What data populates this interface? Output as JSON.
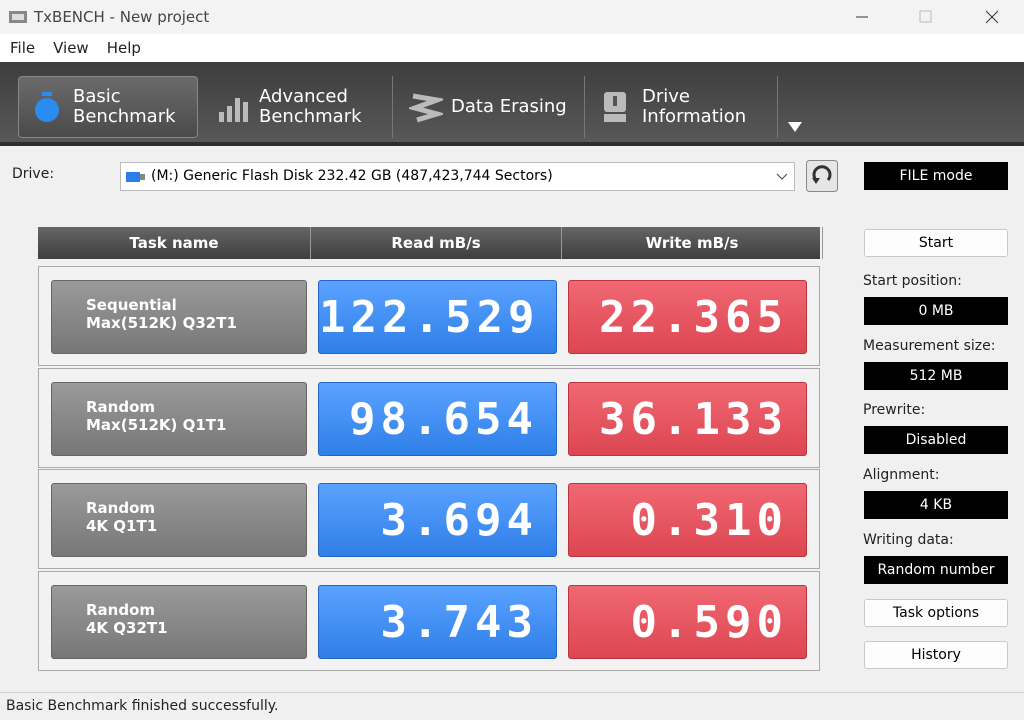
{
  "window": {
    "title": "TxBENCH - New project"
  },
  "menu": [
    "File",
    "View",
    "Help"
  ],
  "tabs": [
    {
      "lines": [
        "Basic",
        "Benchmark"
      ]
    },
    {
      "lines": [
        "Advanced",
        "Benchmark"
      ]
    },
    {
      "lines": [
        "Data Erasing"
      ]
    },
    {
      "lines": [
        "Drive",
        "Information"
      ]
    }
  ],
  "drive": {
    "label": "Drive:",
    "value": "(M:) Generic Flash Disk  232.42 GB (487,423,744 Sectors)"
  },
  "mode": "FILE mode",
  "table": {
    "headers": [
      "Task name",
      "Read mB/s",
      "Write mB/s"
    ],
    "rows": [
      {
        "task": [
          "Sequential",
          "Max(512K) Q32T1"
        ],
        "read": "122.529",
        "write": "22.365"
      },
      {
        "task": [
          "Random",
          "Max(512K) Q1T1"
        ],
        "read": "98.654",
        "write": "36.133"
      },
      {
        "task": [
          "Random",
          "4K Q1T1"
        ],
        "read": "3.694",
        "write": "0.310"
      },
      {
        "task": [
          "Random",
          "4K Q32T1"
        ],
        "read": "3.743",
        "write": "0.590"
      }
    ]
  },
  "settings": {
    "start": "Start",
    "fields": [
      {
        "label": "Start position:",
        "value": "0 MB"
      },
      {
        "label": "Measurement size:",
        "value": "512 MB"
      },
      {
        "label": "Prewrite:",
        "value": "Disabled"
      },
      {
        "label": "Alignment:",
        "value": "4 KB"
      },
      {
        "label": "Writing data:",
        "value": "Random number"
      }
    ],
    "buttons": [
      "Task options",
      "History"
    ]
  },
  "status": "Basic Benchmark finished successfully."
}
